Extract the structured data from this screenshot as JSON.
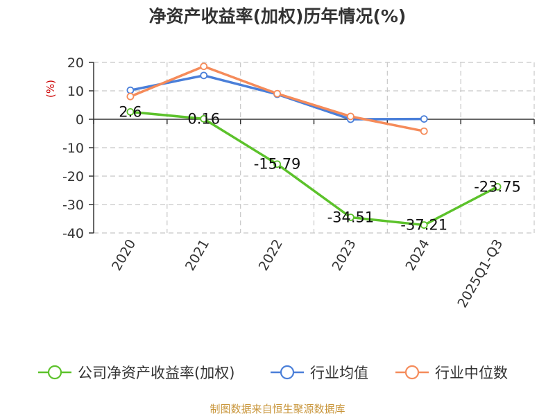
{
  "chart_data": {
    "type": "line",
    "title": "净资产收益率(加权)历年情况(%)",
    "unit_label": "(%)",
    "categories": [
      "2020",
      "2021",
      "2022",
      "2023",
      "2024",
      "2025Q1-Q3"
    ],
    "ylim": [
      -40,
      20
    ],
    "yticks": [
      20,
      10,
      0,
      -10,
      -20,
      -30,
      -40
    ],
    "grid": true,
    "legend_position": "bottom",
    "series": [
      {
        "name": "公司净资产收益率(加权)",
        "color": "#5cc22b",
        "values": [
          2.6,
          0.16,
          -15.79,
          -34.51,
          -37.21,
          -23.75
        ],
        "labels": [
          "2.6",
          "0.16",
          "-15.79",
          "-34.51",
          "-37.21",
          "-23.75"
        ]
      },
      {
        "name": "行业均值",
        "color": "#4a7fd9",
        "values": [
          10.2,
          15.4,
          8.8,
          0.0,
          0.1,
          null
        ]
      },
      {
        "name": "行业中位数",
        "color": "#f58b5a",
        "values": [
          8.0,
          18.6,
          9.0,
          1.0,
          -4.2,
          null
        ]
      }
    ]
  },
  "source_text": "制图数据来自恒生聚源数据库"
}
